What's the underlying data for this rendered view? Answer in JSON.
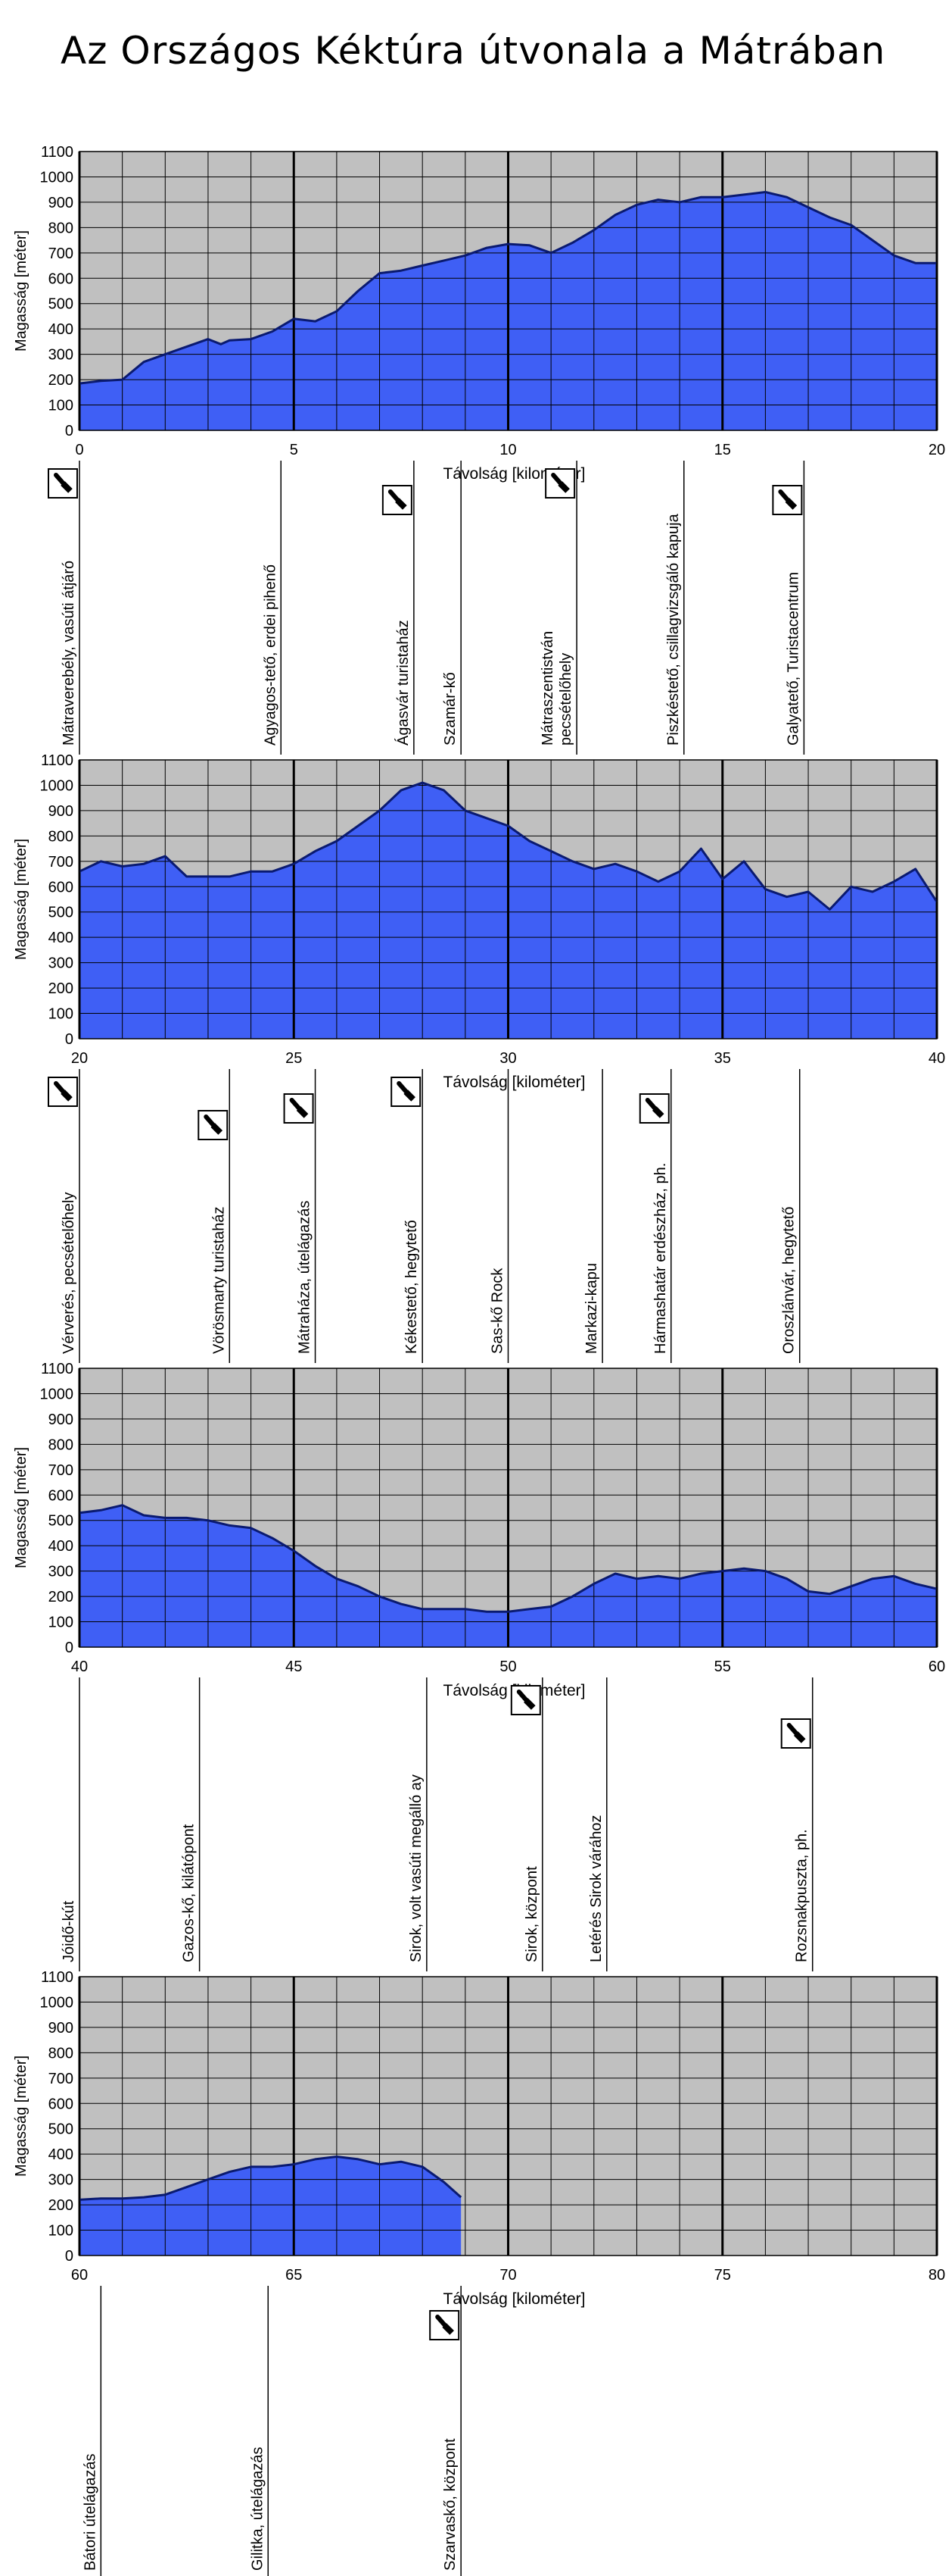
{
  "title": "Az Országos Kéktúra útvonala a Mátrában",
  "colors": {
    "fill": "#3f5ff5",
    "outline": "#0a1a70",
    "plot_bg": "#c0c0c0",
    "grid": "#000000"
  },
  "chart_data": [
    {
      "type": "area",
      "xlabel": "Távolság [kilométer]",
      "ylabel": "Magasság [méter]",
      "xlim": [
        0,
        20
      ],
      "ylim": [
        0,
        1100
      ],
      "xticks": [
        0,
        5,
        10,
        15,
        20
      ],
      "yticks": [
        0,
        100,
        200,
        300,
        400,
        500,
        600,
        700,
        800,
        900,
        1000,
        1100
      ],
      "x": [
        0,
        0.5,
        1,
        1.5,
        2,
        2.5,
        3,
        3.3,
        3.5,
        4,
        4.5,
        5,
        5.5,
        6,
        6.5,
        7,
        7.5,
        8,
        8.5,
        9,
        9.5,
        10,
        10.5,
        11,
        11.5,
        12,
        12.5,
        13,
        13.5,
        14,
        14.5,
        15,
        15.5,
        16,
        16.5,
        17,
        17.5,
        18,
        18.5,
        19,
        19.5,
        20
      ],
      "y": [
        185,
        195,
        200,
        270,
        300,
        330,
        360,
        340,
        355,
        360,
        390,
        440,
        430,
        470,
        550,
        620,
        630,
        650,
        670,
        690,
        720,
        735,
        730,
        700,
        740,
        790,
        850,
        890,
        910,
        900,
        920,
        920,
        930,
        940,
        920,
        880,
        840,
        810,
        750,
        690,
        660,
        660
      ],
      "markers": [
        {
          "km": 0,
          "label": "Mátraverebély, vasúti átjáró",
          "stamp": true
        },
        {
          "km": 4.7,
          "label": "Agyagos-tető, erdei pihenő",
          "stamp": false
        },
        {
          "km": 7.8,
          "label": "Ágasvár turistaház",
          "stamp": true
        },
        {
          "km": 8.9,
          "label": "Szamár-kő",
          "stamp": false
        },
        {
          "km": 11.6,
          "label": "Mátraszentistván pecsételőhely",
          "stamp": true
        },
        {
          "km": 14.1,
          "label": "Piszkéstető, csillagvizsgáló kapuja",
          "stamp": false
        },
        {
          "km": 16.9,
          "label": "Galyatető, Turistacentrum",
          "stamp": true
        }
      ]
    },
    {
      "type": "area",
      "xlabel": "Távolság [kilométer]",
      "ylabel": "Magasság [méter]",
      "xlim": [
        20,
        40
      ],
      "ylim": [
        0,
        1100
      ],
      "xticks": [
        20,
        25,
        30,
        35,
        40
      ],
      "yticks": [
        0,
        100,
        200,
        300,
        400,
        500,
        600,
        700,
        800,
        900,
        1000,
        1100
      ],
      "x": [
        20,
        20.5,
        21,
        21.5,
        22,
        22.5,
        23,
        23.5,
        24,
        24.5,
        25,
        25.5,
        26,
        26.5,
        27,
        27.5,
        28,
        28.5,
        29,
        29.5,
        30,
        30.5,
        31,
        31.5,
        32,
        32.5,
        33,
        33.5,
        34,
        34.5,
        35,
        35.5,
        36,
        36.5,
        37,
        37.5,
        38,
        38.5,
        39,
        39.5,
        40
      ],
      "y": [
        660,
        700,
        680,
        690,
        720,
        640,
        640,
        640,
        660,
        660,
        690,
        740,
        780,
        840,
        900,
        980,
        1010,
        980,
        900,
        870,
        840,
        780,
        740,
        700,
        670,
        690,
        660,
        620,
        660,
        750,
        630,
        700,
        590,
        560,
        580,
        510,
        600,
        580,
        620,
        670,
        540
      ],
      "markers": [
        {
          "km": 20,
          "label": "Vérverés, pecsételőhely",
          "stamp": true
        },
        {
          "km": 23.5,
          "label": "Vörösmarty turistaház",
          "stamp": true
        },
        {
          "km": 25.5,
          "label": "Mátraháza, útelágazás",
          "stamp": true
        },
        {
          "km": 28,
          "label": "Kékestető, hegytető",
          "stamp": true
        },
        {
          "km": 30,
          "label": "Sas-kő Rock",
          "stamp": false
        },
        {
          "km": 32.2,
          "label": "Markazi-kapu",
          "stamp": false
        },
        {
          "km": 33.8,
          "label": "Hármashatár erdészház, ph.",
          "stamp": true
        },
        {
          "km": 36.8,
          "label": "Oroszlánvár, hegytető",
          "stamp": false
        }
      ]
    },
    {
      "type": "area",
      "xlabel": "Távolság [kilométer]",
      "ylabel": "Magasság [méter]",
      "xlim": [
        40,
        60
      ],
      "ylim": [
        0,
        1100
      ],
      "xticks": [
        40,
        45,
        50,
        55,
        60
      ],
      "yticks": [
        0,
        100,
        200,
        300,
        400,
        500,
        600,
        700,
        800,
        900,
        1000,
        1100
      ],
      "x": [
        40,
        40.5,
        41,
        41.5,
        42,
        42.5,
        43,
        43.5,
        44,
        44.5,
        45,
        45.5,
        46,
        46.5,
        47,
        47.5,
        48,
        48.5,
        49,
        49.5,
        50,
        50.5,
        51,
        51.5,
        52,
        52.5,
        53,
        53.5,
        54,
        54.5,
        55,
        55.5,
        56,
        56.5,
        57,
        57.5,
        58,
        58.5,
        59,
        59.5,
        60
      ],
      "y": [
        530,
        540,
        560,
        520,
        510,
        510,
        500,
        480,
        470,
        430,
        380,
        320,
        270,
        240,
        200,
        170,
        150,
        150,
        150,
        140,
        140,
        150,
        160,
        200,
        250,
        290,
        270,
        280,
        270,
        290,
        300,
        310,
        300,
        270,
        220,
        210,
        240,
        270,
        280,
        250,
        230
      ],
      "markers": [
        {
          "km": 40,
          "label": "Jóidő-kút",
          "stamp": false
        },
        {
          "km": 42.8,
          "label": "Gazos-kő, kilátópont",
          "stamp": false
        },
        {
          "km": 48.1,
          "label": "Sirok, volt vasúti megálló ay",
          "stamp": false
        },
        {
          "km": 50.8,
          "label": "Sirok, központ",
          "stamp": true
        },
        {
          "km": 52.3,
          "label": "Letérés Sirok várához",
          "stamp": false
        },
        {
          "km": 57.1,
          "label": "Rozsnakpuszta, ph.",
          "stamp": true
        }
      ]
    },
    {
      "type": "area",
      "xlabel": "Távolság [kilométer]",
      "ylabel": "Magasság [méter]",
      "xlim": [
        60,
        80
      ],
      "ylim": [
        0,
        1100
      ],
      "xticks": [
        60,
        65,
        70,
        75,
        80
      ],
      "yticks": [
        0,
        100,
        200,
        300,
        400,
        500,
        600,
        700,
        800,
        900,
        1000,
        1100
      ],
      "x": [
        60,
        60.5,
        61,
        61.5,
        62,
        62.5,
        63,
        63.5,
        64,
        64.5,
        65,
        65.5,
        66,
        66.5,
        67,
        67.5,
        68,
        68.5,
        68.9
      ],
      "y": [
        220,
        225,
        225,
        230,
        240,
        270,
        300,
        330,
        350,
        350,
        360,
        380,
        390,
        380,
        360,
        370,
        350,
        290,
        230
      ],
      "markers": [
        {
          "km": 60.5,
          "label": "Bátori útelágazás",
          "stamp": false
        },
        {
          "km": 64.4,
          "label": "Gilitka, útelágazás",
          "stamp": false
        },
        {
          "km": 68.9,
          "label": "Szarvaskő, központ",
          "stamp": true
        }
      ]
    }
  ]
}
